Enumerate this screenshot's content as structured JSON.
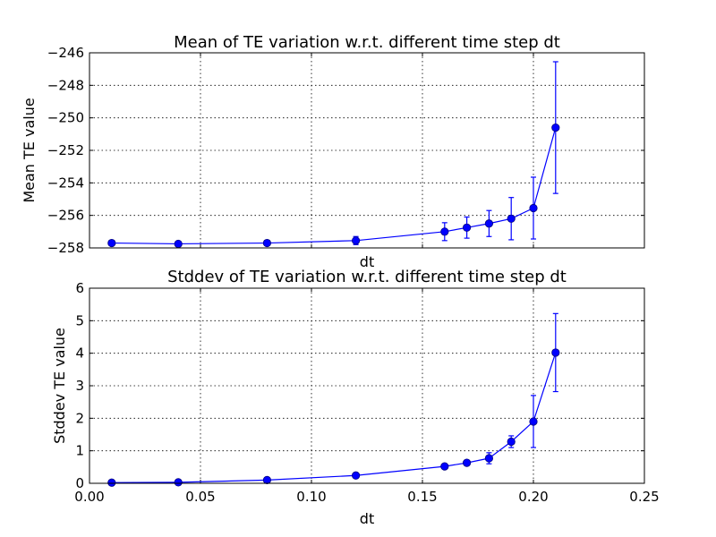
{
  "chart_data": [
    {
      "type": "line",
      "title": "Mean of TE variation w.r.t. different time step dt",
      "xlabel": "dt",
      "ylabel": "Mean TE value",
      "xlim": [
        0.0,
        0.25
      ],
      "ylim": [
        -258,
        -246
      ],
      "xticks": [
        0.0,
        0.05,
        0.1,
        0.15,
        0.2,
        0.25
      ],
      "show_xtick_labels": false,
      "yticks": [
        -258,
        -256,
        -254,
        -252,
        -250,
        -248,
        -246
      ],
      "ytick_labels": [
        "−258",
        "−256",
        "−254",
        "−252",
        "−250",
        "−248",
        "−246"
      ],
      "grid": true,
      "x": [
        0.01,
        0.04,
        0.08,
        0.12,
        0.16,
        0.17,
        0.18,
        0.19,
        0.2,
        0.21
      ],
      "y": [
        -257.7,
        -257.75,
        -257.7,
        -257.55,
        -257.0,
        -256.75,
        -256.5,
        -256.2,
        -255.55,
        -250.6
      ],
      "yerr": [
        0.05,
        0.07,
        0.1,
        0.25,
        0.55,
        0.65,
        0.8,
        1.3,
        1.9,
        4.05
      ]
    },
    {
      "type": "line",
      "title": "Stddev of TE variation w.r.t. different time step dt",
      "xlabel": "dt",
      "ylabel": "Stddev TE value",
      "xlim": [
        0.0,
        0.25
      ],
      "ylim": [
        0,
        6
      ],
      "xticks": [
        0.0,
        0.05,
        0.1,
        0.15,
        0.2,
        0.25
      ],
      "show_xtick_labels": true,
      "xtick_labels": [
        "0.00",
        "0.05",
        "0.10",
        "0.15",
        "0.20",
        "0.25"
      ],
      "yticks": [
        0,
        1,
        2,
        3,
        4,
        5,
        6
      ],
      "ytick_labels": [
        "0",
        "1",
        "2",
        "3",
        "4",
        "5",
        "6"
      ],
      "grid": true,
      "x": [
        0.01,
        0.04,
        0.08,
        0.12,
        0.16,
        0.17,
        0.18,
        0.19,
        0.2,
        0.21
      ],
      "y": [
        0.02,
        0.03,
        0.1,
        0.24,
        0.52,
        0.63,
        0.77,
        1.28,
        1.9,
        4.02
      ],
      "yerr": [
        0.01,
        0.01,
        0.03,
        0.05,
        0.07,
        0.08,
        0.17,
        0.18,
        0.8,
        1.2
      ]
    }
  ]
}
